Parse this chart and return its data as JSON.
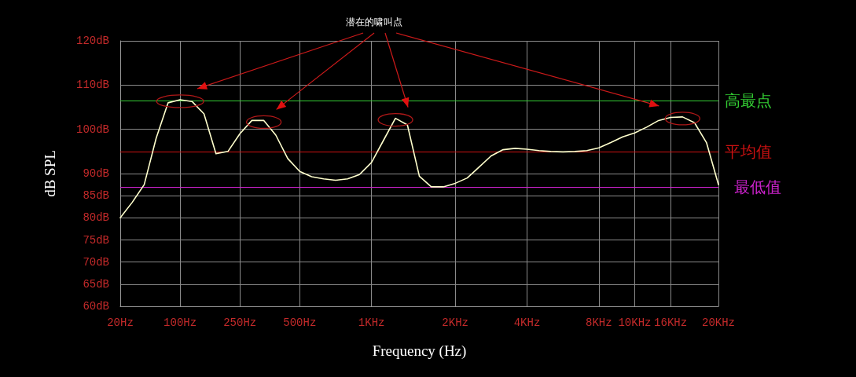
{
  "chart_data": {
    "type": "line",
    "xlabel": "Frequency (Hz)",
    "ylabel": "dB SPL",
    "categories": [
      "20Hz",
      null,
      null,
      null,
      null,
      "100Hz",
      null,
      null,
      null,
      null,
      "250Hz",
      null,
      null,
      null,
      null,
      "500Hz",
      null,
      null,
      null,
      null,
      null,
      "1KHz",
      null,
      null,
      null,
      null,
      null,
      null,
      "2KHz",
      null,
      null,
      null,
      null,
      null,
      "4KHz",
      null,
      null,
      null,
      null,
      null,
      "8KHz",
      null,
      null,
      "10KHz",
      null,
      null,
      "16KHz",
      null,
      null,
      null,
      "20KHz"
    ],
    "series": [
      {
        "color": "#ffffcc",
        "values": [
          80,
          83.5,
          87.5,
          98,
          106,
          106.7,
          106.3,
          103.5,
          94.5,
          95,
          99,
          102,
          102,
          98.7,
          93.4,
          90.5,
          89.3,
          88.8,
          88.5,
          88.8,
          89.8,
          92.5,
          97.5,
          102.5,
          101,
          89.4,
          87,
          87,
          87.8,
          89,
          91.5,
          94,
          95.4,
          95.7,
          95.5,
          95.2,
          95,
          94.9,
          95,
          95.2,
          95.8,
          97,
          98.3,
          99.2,
          100.5,
          102,
          102.7,
          102.8,
          101.5,
          97,
          87.5
        ]
      }
    ],
    "ylim": [
      60,
      120
    ],
    "yticks": [
      {
        "value": 60,
        "label": "60dB"
      },
      {
        "value": 65,
        "label": "65dB"
      },
      {
        "value": 70,
        "label": "70dB"
      },
      {
        "value": 75,
        "label": "75dB"
      },
      {
        "value": 80,
        "label": "80dB"
      },
      {
        "value": 85,
        "label": "85dB"
      },
      {
        "value": 90,
        "label": "90dB"
      },
      {
        "value": 100,
        "label": "100dB"
      },
      {
        "value": 110,
        "label": "110dB"
      },
      {
        "value": 120,
        "label": "120dB"
      }
    ],
    "ref_lines": [
      {
        "axis": "y",
        "value": 106.5,
        "label": "高最点",
        "color": "#33cc33"
      },
      {
        "axis": "y",
        "value": 95,
        "label": "平均值",
        "color": "#cc1111"
      },
      {
        "axis": "y",
        "value": 87,
        "label": "最低值",
        "color": "#cc22cc"
      }
    ],
    "annotations": [
      "潜在的啸叫点"
    ],
    "grid": true,
    "marker": "none",
    "line_style": "solid"
  }
}
